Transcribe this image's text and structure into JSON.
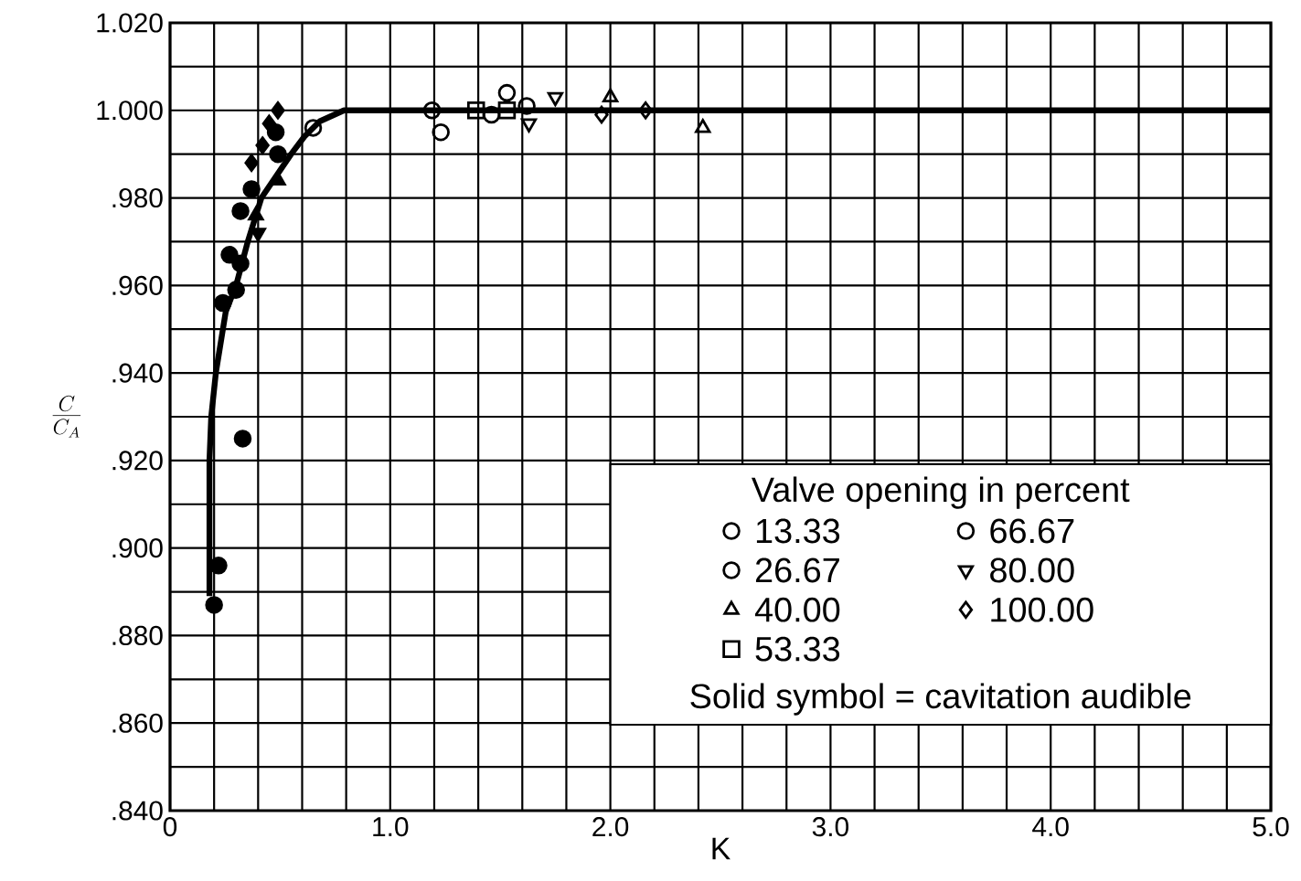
{
  "chart_data": {
    "type": "scatter",
    "xlabel": "K",
    "ylabel": "\\frac{C}{C_A}",
    "legend_title": "Valve opening in percent",
    "annotations": [
      "Solid symbol = cavitation audible"
    ],
    "xlim": [
      0,
      5.0
    ],
    "ylim": [
      0.84,
      1.02
    ],
    "xticks": [
      0,
      {
        "value": 0.2,
        "label": null
      },
      {
        "value": 0.4,
        "label": null
      },
      {
        "value": 0.6,
        "label": null
      },
      {
        "value": 0.8,
        "label": null
      },
      {
        "value": 1.0,
        "label": "1.0"
      },
      {
        "value": 1.2,
        "label": null
      },
      {
        "value": 1.4,
        "label": null
      },
      {
        "value": 1.6,
        "label": null
      },
      {
        "value": 1.8,
        "label": null
      },
      {
        "value": 2.0,
        "label": "2.0"
      },
      {
        "value": 2.2,
        "label": null
      },
      {
        "value": 2.4,
        "label": null
      },
      {
        "value": 2.6,
        "label": null
      },
      {
        "value": 2.8,
        "label": null
      },
      {
        "value": 3.0,
        "label": "3.0"
      },
      {
        "value": 3.2,
        "label": null
      },
      {
        "value": 3.4,
        "label": null
      },
      {
        "value": 3.6,
        "label": null
      },
      {
        "value": 3.8,
        "label": null
      },
      {
        "value": 4.0,
        "label": "4.0"
      },
      {
        "value": 4.2,
        "label": null
      },
      {
        "value": 4.4,
        "label": null
      },
      {
        "value": 4.6,
        "label": null
      },
      {
        "value": 4.8,
        "label": null
      },
      {
        "value": 5.0,
        "label": "5.0"
      }
    ],
    "yticks": [
      {
        "value": 0.84,
        "label": ".840"
      },
      {
        "value": 0.85,
        "label": null
      },
      {
        "value": 0.86,
        "label": ".860"
      },
      {
        "value": 0.87,
        "label": null
      },
      {
        "value": 0.88,
        "label": ".880"
      },
      {
        "value": 0.89,
        "label": null
      },
      {
        "value": 0.9,
        "label": ".900"
      },
      {
        "value": 0.91,
        "label": null
      },
      {
        "value": 0.92,
        "label": ".920"
      },
      {
        "value": 0.93,
        "label": null
      },
      {
        "value": 0.94,
        "label": ".940"
      },
      {
        "value": 0.95,
        "label": null
      },
      {
        "value": 0.96,
        "label": ".960"
      },
      {
        "value": 0.97,
        "label": null
      },
      {
        "value": 0.98,
        "label": ".980"
      },
      {
        "value": 0.99,
        "label": null
      },
      {
        "value": 1.0,
        "label": "1.000"
      },
      {
        "value": 1.01,
        "label": null
      },
      {
        "value": 1.02,
        "label": "1.020"
      }
    ],
    "grid": true,
    "legend": "bottom right",
    "series": [
      {
        "name": "13.33",
        "color": "#000000",
        "marker": "circle",
        "x": [
          1.23,
          1.53
        ],
        "values": [
          0.995,
          1.004
        ]
      },
      {
        "name": "26.67",
        "color": "#000000",
        "marker": "circle",
        "x": [
          1.46,
          1.62
        ],
        "values": [
          0.999,
          1.001
        ]
      },
      {
        "name": "40.00",
        "color": "#000000",
        "marker": "triangle",
        "x": [
          2.0,
          2.42
        ],
        "values": [
          1.003,
          0.996
        ]
      },
      {
        "name": "53.33",
        "color": "#000000",
        "marker": "square",
        "x": [
          1.39,
          1.53
        ],
        "values": [
          1.0,
          1.0
        ]
      },
      {
        "name": "66.67",
        "color": "#000000",
        "marker": "circle",
        "x": [
          0.65,
          1.19
        ],
        "values": [
          0.996,
          1.0
        ]
      },
      {
        "name": "80.00",
        "color": "#000000",
        "marker": "triangle_down",
        "x": [
          1.63,
          1.75
        ],
        "values": [
          0.997,
          1.003
        ]
      },
      {
        "name": "100.00",
        "color": "#000000",
        "marker": "diamond",
        "x": [
          1.96,
          2.16
        ],
        "values": [
          0.999,
          1.0
        ]
      },
      {
        "color": "#000000",
        "marker": "circle",
        "x": [
          0.2,
          0.33,
          0.27
        ],
        "values": [
          0.887,
          0.925,
          0.967
        ]
      },
      {
        "color": "#000000",
        "marker": "circle",
        "x": [
          0.22,
          0.24,
          0.3,
          0.32,
          0.32,
          0.37,
          0.49
        ],
        "values": [
          0.896,
          0.956,
          0.959,
          0.965,
          0.977,
          0.982,
          0.99
        ]
      },
      {
        "color": "#000000",
        "marker": "triangle",
        "x": [
          0.39,
          0.49
        ],
        "values": [
          0.976,
          0.984
        ]
      },
      {
        "color": "#000000",
        "marker": "circle",
        "x": [
          0.48
        ],
        "values": [
          0.995
        ]
      },
      {
        "color": "#000000",
        "marker": "triangle_down",
        "x": [
          0.4
        ],
        "values": [
          0.972
        ]
      },
      {
        "color": "#000000",
        "marker": "diamond",
        "x": [
          0.37,
          0.42,
          0.45,
          0.49
        ],
        "values": [
          0.988,
          0.992,
          0.997,
          1.0
        ]
      },
      {
        "type": "line",
        "color": "#000000",
        "marker": "none",
        "line_style": "solid",
        "x": [
          0.179,
          0.179,
          0.187,
          0.208,
          0.253,
          0.3,
          0.353,
          0.415,
          0.55,
          0.61,
          0.68,
          0.79,
          5.0
        ],
        "values": [
          0.889,
          0.92,
          0.93,
          0.94,
          0.954,
          0.96,
          0.97,
          0.98,
          0.99,
          0.994,
          0.9975,
          1.0,
          1.0
        ]
      }
    ]
  }
}
